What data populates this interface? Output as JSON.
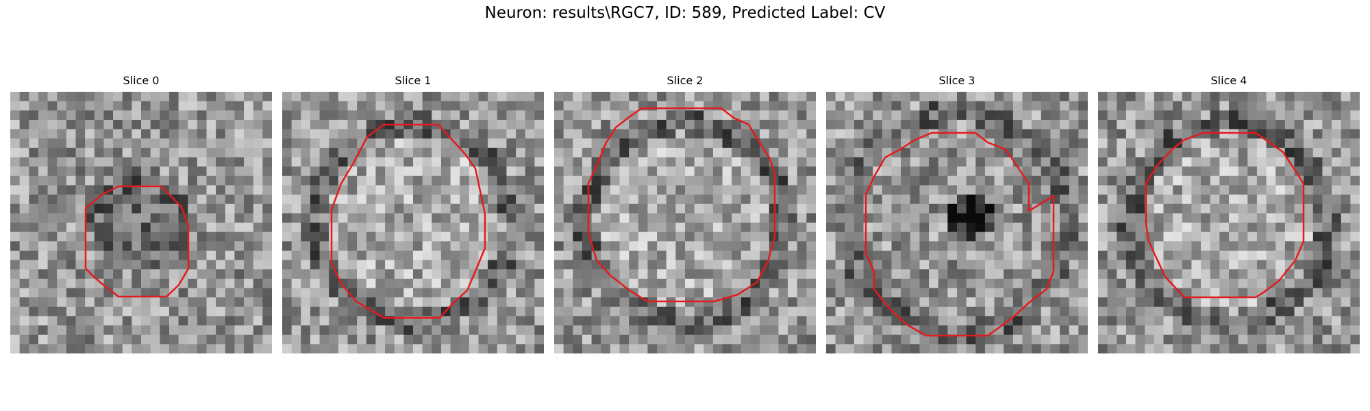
{
  "figure": {
    "title": "Neuron: results\\RGC7, ID: 589, Predicted Label: CV"
  },
  "panels": [
    {
      "title": "Slice 0",
      "contour_color": "#e41a1c",
      "center_tone": "dark"
    },
    {
      "title": "Slice 1",
      "contour_color": "#e41a1c",
      "center_tone": "light"
    },
    {
      "title": "Slice 2",
      "contour_color": "#e41a1c",
      "center_tone": "light"
    },
    {
      "title": "Slice 3",
      "contour_color": "#e41a1c",
      "center_tone": "dark-blob"
    },
    {
      "title": "Slice 4",
      "contour_color": "#e41a1c",
      "center_tone": "light"
    }
  ]
}
